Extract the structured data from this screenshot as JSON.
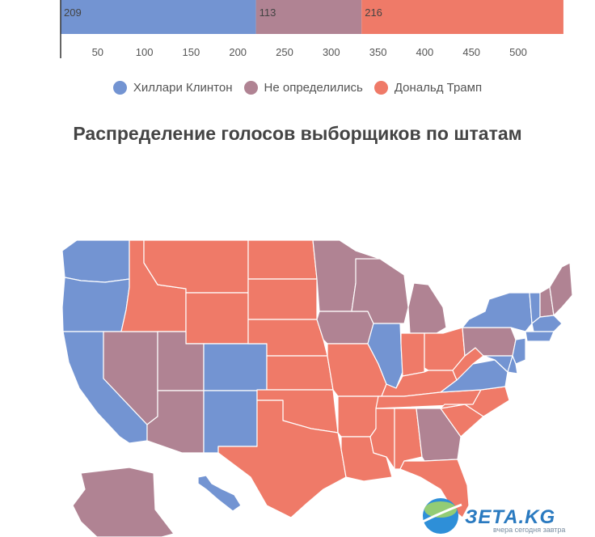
{
  "colors": {
    "clinton": "#7394d2",
    "undecided": "#b08393",
    "trump": "#ef7a68"
  },
  "chart_data": {
    "type": "bar",
    "orientation": "horizontal-stacked",
    "segments": [
      {
        "name": "Хиллари Клинтон",
        "value": 209,
        "label": "209",
        "color": "#7394d2"
      },
      {
        "name": "Не определились",
        "value": 113,
        "label": "113",
        "color": "#b08393"
      },
      {
        "name": "Дональд Трамп",
        "value": 216,
        "label": "216",
        "color": "#ef7a68"
      }
    ],
    "xticks": [
      "50",
      "100",
      "150",
      "200",
      "250",
      "300",
      "350",
      "400",
      "450",
      "500"
    ],
    "xlim": [
      0,
      538
    ]
  },
  "legend": {
    "items": [
      {
        "label": "Хиллари Клинтон",
        "color": "#7394d2"
      },
      {
        "label": "Не определились",
        "color": "#b08393"
      },
      {
        "label": "Дональд Трамп",
        "color": "#ef7a68"
      }
    ]
  },
  "map": {
    "title": "Распределение голосов выборщиков по штатам",
    "states": [
      {
        "name": "washington",
        "party": "clinton"
      },
      {
        "name": "oregon",
        "party": "clinton"
      },
      {
        "name": "california",
        "party": "clinton"
      },
      {
        "name": "idaho",
        "party": "trump"
      },
      {
        "name": "montana",
        "party": "trump"
      },
      {
        "name": "wyoming",
        "party": "trump"
      },
      {
        "name": "nevada",
        "party": "undecided"
      },
      {
        "name": "utah",
        "party": "undecided"
      },
      {
        "name": "arizona",
        "party": "undecided"
      },
      {
        "name": "colorado",
        "party": "clinton"
      },
      {
        "name": "new-mexico",
        "party": "clinton"
      },
      {
        "name": "north-dakota",
        "party": "trump"
      },
      {
        "name": "south-dakota",
        "party": "trump"
      },
      {
        "name": "nebraska",
        "party": "trump"
      },
      {
        "name": "kansas",
        "party": "trump"
      },
      {
        "name": "oklahoma",
        "party": "trump"
      },
      {
        "name": "texas",
        "party": "trump"
      },
      {
        "name": "minnesota",
        "party": "undecided"
      },
      {
        "name": "iowa",
        "party": "undecided"
      },
      {
        "name": "missouri",
        "party": "trump"
      },
      {
        "name": "arkansas",
        "party": "trump"
      },
      {
        "name": "louisiana",
        "party": "trump"
      },
      {
        "name": "wisconsin",
        "party": "undecided"
      },
      {
        "name": "illinois",
        "party": "clinton"
      },
      {
        "name": "michigan",
        "party": "undecided"
      },
      {
        "name": "indiana",
        "party": "trump"
      },
      {
        "name": "ohio",
        "party": "trump"
      },
      {
        "name": "kentucky",
        "party": "trump"
      },
      {
        "name": "tennessee",
        "party": "trump"
      },
      {
        "name": "mississippi",
        "party": "trump"
      },
      {
        "name": "alabama",
        "party": "trump"
      },
      {
        "name": "georgia",
        "party": "undecided"
      },
      {
        "name": "florida",
        "party": "trump"
      },
      {
        "name": "south-carolina",
        "party": "trump"
      },
      {
        "name": "north-carolina",
        "party": "trump"
      },
      {
        "name": "virginia",
        "party": "clinton"
      },
      {
        "name": "west-virginia",
        "party": "trump"
      },
      {
        "name": "pennsylvania",
        "party": "undecided"
      },
      {
        "name": "new-york",
        "party": "clinton"
      },
      {
        "name": "new-jersey",
        "party": "clinton"
      },
      {
        "name": "maryland",
        "party": "clinton"
      },
      {
        "name": "delaware",
        "party": "clinton"
      },
      {
        "name": "vermont",
        "party": "clinton"
      },
      {
        "name": "new-hampshire",
        "party": "undecided"
      },
      {
        "name": "maine",
        "party": "undecided"
      },
      {
        "name": "massachusetts",
        "party": "clinton"
      },
      {
        "name": "connecticut",
        "party": "clinton"
      },
      {
        "name": "alaska",
        "party": "undecided"
      },
      {
        "name": "hawaii",
        "party": "clinton"
      }
    ]
  },
  "watermark": {
    "logo_text": "ЗЕТА.KG",
    "tagline": "вчера сегодня завтра",
    "globe_icon": "globe-icon"
  }
}
